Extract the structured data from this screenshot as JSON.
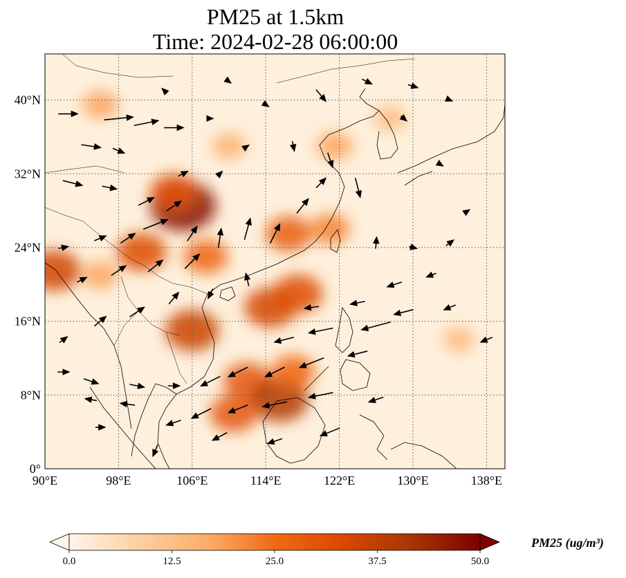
{
  "title": {
    "line1": "PM25 at 1.5km",
    "line2": "Time: 2024-02-28 06:00:00"
  },
  "map": {
    "lon_range": [
      90,
      140
    ],
    "lat_range": [
      0,
      45
    ],
    "lon_ticks": [
      {
        "value": 90,
        "label": "90°E"
      },
      {
        "value": 98,
        "label": "98°E"
      },
      {
        "value": 106,
        "label": "106°E"
      },
      {
        "value": 114,
        "label": "114°E"
      },
      {
        "value": 122,
        "label": "122°E"
      },
      {
        "value": 130,
        "label": "130°E"
      },
      {
        "value": 138,
        "label": "138°E"
      }
    ],
    "lat_ticks": [
      {
        "value": 0,
        "label": "0°"
      },
      {
        "value": 8,
        "label": "8°N"
      },
      {
        "value": 16,
        "label": "16°N"
      },
      {
        "value": 24,
        "label": "24°N"
      },
      {
        "value": 32,
        "label": "32°N"
      },
      {
        "value": 40,
        "label": "40°N"
      }
    ],
    "gridlines": "dotted",
    "hotspots": [
      {
        "lon": 105.0,
        "lat": 28.5,
        "value": 48
      },
      {
        "lon": 104.0,
        "lat": 30.0,
        "value": 30
      },
      {
        "lon": 91.0,
        "lat": 21.5,
        "value": 35
      },
      {
        "lon": 100.5,
        "lat": 23.5,
        "value": 32
      },
      {
        "lon": 107.5,
        "lat": 23.0,
        "value": 26
      },
      {
        "lon": 116.5,
        "lat": 25.5,
        "value": 28
      },
      {
        "lon": 121.0,
        "lat": 26.0,
        "value": 22
      },
      {
        "lon": 114.5,
        "lat": 17.5,
        "value": 34
      },
      {
        "lon": 117.5,
        "lat": 19.0,
        "value": 32
      },
      {
        "lon": 106.0,
        "lat": 15.0,
        "value": 36
      },
      {
        "lon": 112.0,
        "lat": 9.5,
        "value": 30
      },
      {
        "lon": 115.5,
        "lat": 7.5,
        "value": 40
      },
      {
        "lon": 110.5,
        "lat": 6.0,
        "value": 30
      },
      {
        "lon": 117.0,
        "lat": 10.5,
        "value": 26
      },
      {
        "lon": 96.0,
        "lat": 39.5,
        "value": 18
      },
      {
        "lon": 121.5,
        "lat": 35.0,
        "value": 18
      },
      {
        "lon": 110.0,
        "lat": 35.0,
        "value": 16
      },
      {
        "lon": 127.5,
        "lat": 38.0,
        "value": 14
      },
      {
        "lon": 135.0,
        "lat": 14.0,
        "value": 14
      },
      {
        "lon": 96.0,
        "lat": 21.0,
        "value": 18
      }
    ],
    "wind_vectors": [
      {
        "lon": 92.5,
        "lat": 38.5,
        "u": 2,
        "v": 0
      },
      {
        "lon": 98,
        "lat": 38.0,
        "u": 3,
        "v": 0.3
      },
      {
        "lon": 101,
        "lat": 37.5,
        "u": 2.5,
        "v": 0.5
      },
      {
        "lon": 104,
        "lat": 37.0,
        "u": 2.0,
        "v": 0
      },
      {
        "lon": 108,
        "lat": 38.0,
        "u": 0.5,
        "v": 0
      },
      {
        "lon": 95,
        "lat": 35.0,
        "u": 2,
        "v": -0.3
      },
      {
        "lon": 98,
        "lat": 34.5,
        "u": 1.2,
        "v": -0.5
      },
      {
        "lon": 93,
        "lat": 31.0,
        "u": 2,
        "v": -0.5
      },
      {
        "lon": 97,
        "lat": 30.5,
        "u": 1.5,
        "v": -0.3
      },
      {
        "lon": 101,
        "lat": 29.0,
        "u": 1.6,
        "v": 0.8
      },
      {
        "lon": 104,
        "lat": 28.5,
        "u": 1.5,
        "v": 1.0
      },
      {
        "lon": 102,
        "lat": 26.5,
        "u": 2.5,
        "v": 1.0
      },
      {
        "lon": 106,
        "lat": 25.5,
        "u": 1.0,
        "v": 1.5
      },
      {
        "lon": 109,
        "lat": 25.0,
        "u": 0.3,
        "v": 2.0
      },
      {
        "lon": 112,
        "lat": 26.0,
        "u": 0.6,
        "v": 2.2
      },
      {
        "lon": 115,
        "lat": 25.5,
        "u": 1.0,
        "v": 2.0
      },
      {
        "lon": 118,
        "lat": 28.5,
        "u": 1.2,
        "v": 1.5
      },
      {
        "lon": 120,
        "lat": 31.0,
        "u": 1.0,
        "v": 1.0
      },
      {
        "lon": 117,
        "lat": 35.0,
        "u": 0.2,
        "v": -1.0
      },
      {
        "lon": 121,
        "lat": 33.5,
        "u": 0.5,
        "v": -1.5
      },
      {
        "lon": 124,
        "lat": 30.5,
        "u": 0.5,
        "v": -2.0
      },
      {
        "lon": 126,
        "lat": 24.5,
        "u": 0.1,
        "v": 1.2
      },
      {
        "lon": 130,
        "lat": 24.0,
        "u": 0.8,
        "v": -0.2
      },
      {
        "lon": 134,
        "lat": 24.5,
        "u": 0.8,
        "v": 0.6
      },
      {
        "lon": 132,
        "lat": 21.0,
        "u": -1.0,
        "v": -0.4
      },
      {
        "lon": 128,
        "lat": 20.0,
        "u": -1.5,
        "v": -0.5
      },
      {
        "lon": 124,
        "lat": 18.0,
        "u": -1.5,
        "v": -0.3
      },
      {
        "lon": 119,
        "lat": 17.5,
        "u": -1.5,
        "v": -0.2
      },
      {
        "lon": 129,
        "lat": 17.0,
        "u": -2.0,
        "v": -0.5
      },
      {
        "lon": 134,
        "lat": 17.5,
        "u": -1.2,
        "v": -0.5
      },
      {
        "lon": 126,
        "lat": 15.5,
        "u": -3.0,
        "v": -0.8
      },
      {
        "lon": 120,
        "lat": 15.0,
        "u": -2.5,
        "v": -0.5
      },
      {
        "lon": 116,
        "lat": 14.0,
        "u": -2.0,
        "v": -0.5
      },
      {
        "lon": 124,
        "lat": 12.5,
        "u": -2.0,
        "v": -0.5
      },
      {
        "lon": 119,
        "lat": 11.5,
        "u": -2.5,
        "v": -1.0
      },
      {
        "lon": 115,
        "lat": 10.5,
        "u": -2.0,
        "v": -1.0
      },
      {
        "lon": 111,
        "lat": 10.5,
        "u": -2.0,
        "v": -1.0
      },
      {
        "lon": 108,
        "lat": 9.5,
        "u": -2.0,
        "v": -1.0
      },
      {
        "lon": 126,
        "lat": 7.5,
        "u": -1.5,
        "v": -0.5
      },
      {
        "lon": 120,
        "lat": 8.0,
        "u": -2.5,
        "v": -0.5
      },
      {
        "lon": 115,
        "lat": 7.0,
        "u": -2.5,
        "v": -0.5
      },
      {
        "lon": 111,
        "lat": 6.5,
        "u": -2.0,
        "v": -0.8
      },
      {
        "lon": 107,
        "lat": 6.0,
        "u": -2.0,
        "v": -1.0
      },
      {
        "lon": 104,
        "lat": 5.0,
        "u": -1.5,
        "v": -0.5
      },
      {
        "lon": 99,
        "lat": 7.0,
        "u": -1.5,
        "v": 0.2
      },
      {
        "lon": 95,
        "lat": 7.5,
        "u": -1.2,
        "v": 0.2
      },
      {
        "lon": 92,
        "lat": 10.5,
        "u": 1.2,
        "v": 0
      },
      {
        "lon": 95,
        "lat": 9.5,
        "u": 1.5,
        "v": -0.5
      },
      {
        "lon": 100,
        "lat": 9.0,
        "u": 1.5,
        "v": -0.3
      },
      {
        "lon": 104,
        "lat": 9.0,
        "u": 1.2,
        "v": 0
      },
      {
        "lon": 109,
        "lat": 3.5,
        "u": -1.5,
        "v": -0.8
      },
      {
        "lon": 115,
        "lat": 3.0,
        "u": -1.5,
        "v": -0.5
      },
      {
        "lon": 121,
        "lat": 4.0,
        "u": -2.0,
        "v": -0.8
      },
      {
        "lon": 102,
        "lat": 2.0,
        "u": -0.5,
        "v": -1.2
      },
      {
        "lon": 96,
        "lat": 4.5,
        "u": 1.0,
        "v": 0
      },
      {
        "lon": 92,
        "lat": 14.0,
        "u": 0.8,
        "v": 0.6
      },
      {
        "lon": 96,
        "lat": 16.0,
        "u": 1.2,
        "v": 1.0
      },
      {
        "lon": 100,
        "lat": 17.0,
        "u": 1.5,
        "v": 1.0
      },
      {
        "lon": 104,
        "lat": 18.5,
        "u": 1.0,
        "v": 1.2
      },
      {
        "lon": 108,
        "lat": 19.0,
        "u": -0.5,
        "v": -1.0
      },
      {
        "lon": 112,
        "lat": 20.5,
        "u": -0.3,
        "v": 1.3
      },
      {
        "lon": 94,
        "lat": 20.5,
        "u": 1.0,
        "v": 0.5
      },
      {
        "lon": 98,
        "lat": 21.5,
        "u": 1.5,
        "v": 1.0
      },
      {
        "lon": 102,
        "lat": 22.0,
        "u": 1.5,
        "v": 1.2
      },
      {
        "lon": 106,
        "lat": 22.5,
        "u": 1.5,
        "v": 1.5
      },
      {
        "lon": 92,
        "lat": 24.0,
        "u": 1.0,
        "v": 0.2
      },
      {
        "lon": 96,
        "lat": 25.0,
        "u": 1.2,
        "v": 0.5
      },
      {
        "lon": 99,
        "lat": 25.0,
        "u": 1.5,
        "v": 1.0
      },
      {
        "lon": 105,
        "lat": 32.0,
        "u": 1.0,
        "v": 0.5
      },
      {
        "lon": 109,
        "lat": 32.0,
        "u": 0.5,
        "v": 0.5
      },
      {
        "lon": 112,
        "lat": 35.0,
        "u": 0.3,
        "v": 0.2
      },
      {
        "lon": 120,
        "lat": 40.5,
        "u": 1.0,
        "v": -1.2
      },
      {
        "lon": 125,
        "lat": 42.0,
        "u": 1.0,
        "v": -0.5
      },
      {
        "lon": 130,
        "lat": 41.5,
        "u": 1.0,
        "v": -0.3
      },
      {
        "lon": 134,
        "lat": 40.0,
        "u": 0.5,
        "v": -0.2
      },
      {
        "lon": 129,
        "lat": 38.0,
        "u": 0.6,
        "v": -0.5
      },
      {
        "lon": 133,
        "lat": 33.0,
        "u": 0.5,
        "v": -0.3
      },
      {
        "lon": 136,
        "lat": 28.0,
        "u": 0.3,
        "v": 0.2
      },
      {
        "lon": 138,
        "lat": 14.0,
        "u": -1.2,
        "v": -0.5
      },
      {
        "lon": 110,
        "lat": 42.0,
        "u": 0.4,
        "v": -0.3
      },
      {
        "lon": 103,
        "lat": 41.0,
        "u": -0.5,
        "v": 0.5
      },
      {
        "lon": 114,
        "lat": 39.5,
        "u": 0.6,
        "v": -0.4
      }
    ]
  },
  "colorbar": {
    "label": "PM25 (ug/m³)",
    "min": 0,
    "max": 50,
    "ticks": [
      {
        "value": 0,
        "label": "0.0"
      },
      {
        "value": 12.5,
        "label": "12.5"
      },
      {
        "value": 25,
        "label": "25.0"
      },
      {
        "value": 37.5,
        "label": "37.5"
      },
      {
        "value": 50,
        "label": "50.0"
      }
    ],
    "colors": [
      "#fff5eb",
      "#fdd0a2",
      "#fdae6b",
      "#f16913",
      "#d94801",
      "#a63603",
      "#7f0000"
    ]
  }
}
